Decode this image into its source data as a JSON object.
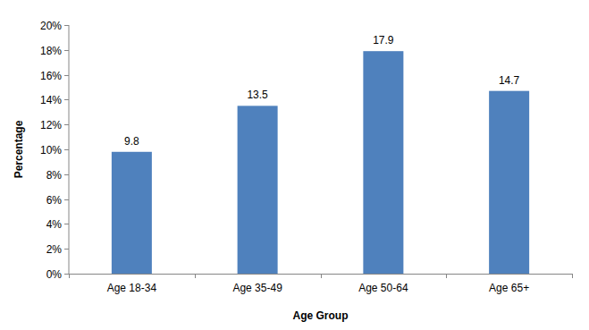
{
  "chart_data": {
    "type": "bar",
    "categories": [
      "Age 18-34",
      "Age 35-49",
      "Age 50-64",
      "Age 65+"
    ],
    "values": [
      9.8,
      13.5,
      17.9,
      14.7
    ],
    "color": "#4f81bd",
    "x_label": "Age Group",
    "y_label": "Percentage",
    "ylim": [
      0,
      20
    ],
    "yticks": [
      {
        "value": 0,
        "label": "0%"
      },
      {
        "value": 2,
        "label": "2%"
      },
      {
        "value": 4,
        "label": "4%"
      },
      {
        "value": 6,
        "label": "6%"
      },
      {
        "value": 8,
        "label": "8%"
      },
      {
        "value": 10,
        "label": "10%"
      },
      {
        "value": 12,
        "label": "12%"
      },
      {
        "value": 14,
        "label": "14%"
      },
      {
        "value": 16,
        "label": "16%"
      },
      {
        "value": 18,
        "label": "18%"
      },
      {
        "value": 20,
        "label": "20%"
      }
    ],
    "grid": false,
    "data_labels": true
  }
}
